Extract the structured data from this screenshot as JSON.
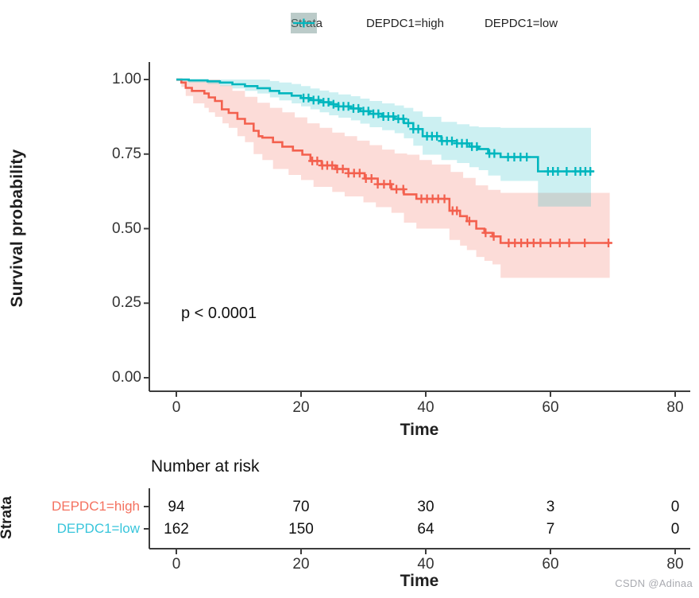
{
  "colors": {
    "high_line": "#F3604E",
    "low_line": "#00B6BE",
    "high_band": "rgba(243,96,78,0.22)",
    "low_band": "rgba(0,182,190,0.20)",
    "high_label": "#F4715F",
    "low_label": "#38C5DB",
    "axis": "#3d3d3d",
    "text": "#242424",
    "watermark": "#a9aab0"
  },
  "legend": {
    "title": "Strata",
    "items": [
      {
        "label": "DEPDC1=high",
        "color_key": "high"
      },
      {
        "label": "DEPDC1=low",
        "color_key": "low"
      }
    ]
  },
  "axes": {
    "y_label": "Survival probability",
    "x_label": "Time",
    "y_ticks": [
      "1.00",
      "0.75",
      "0.50",
      "0.25",
      "0.00"
    ],
    "x_ticks": [
      "0",
      "20",
      "40",
      "60",
      "80"
    ]
  },
  "annotation": {
    "p_value": "p < 0.0001"
  },
  "risk_table": {
    "title": "Number at risk",
    "axis_label": "Strata",
    "x_label": "Time",
    "x_ticks": [
      "0",
      "20",
      "40",
      "60",
      "80"
    ],
    "rows": [
      {
        "label": "DEPDC1=high",
        "color_key": "high",
        "values": [
          "94",
          "70",
          "30",
          "3",
          "0"
        ]
      },
      {
        "label": "DEPDC1=low",
        "color_key": "low",
        "values": [
          "162",
          "150",
          "64",
          "7",
          "0"
        ]
      }
    ]
  },
  "watermark": "CSDN @Adinaa",
  "chart_data": {
    "type": "line",
    "subtype": "kaplan-meier-step",
    "title": "",
    "xlabel": "Time",
    "ylabel": "Survival probability",
    "xlim": [
      0,
      80
    ],
    "ylim": [
      0,
      1
    ],
    "x_ticks": [
      0,
      20,
      40,
      60,
      80
    ],
    "y_ticks": [
      1.0,
      0.75,
      0.5,
      0.25,
      0.0
    ],
    "grid": false,
    "legend_position": "top",
    "p_value_text": "p < 0.0001",
    "number_at_risk": {
      "times": [
        0,
        20,
        40,
        60,
        80
      ],
      "DEPDC1=high": [
        94,
        70,
        30,
        3,
        0
      ],
      "DEPDC1=low": [
        162,
        150,
        64,
        7,
        0
      ]
    },
    "series": [
      {
        "name": "DEPDC1=high",
        "color_key": "high",
        "steps": [
          [
            0,
            1.0
          ],
          [
            0.8,
            0.99
          ],
          [
            1.5,
            0.972
          ],
          [
            2.5,
            0.962
          ],
          [
            4.5,
            0.953
          ],
          [
            5.2,
            0.94
          ],
          [
            6.2,
            0.928
          ],
          [
            7.3,
            0.9
          ],
          [
            8.4,
            0.888
          ],
          [
            9.8,
            0.868
          ],
          [
            11,
            0.852
          ],
          [
            12.4,
            0.828
          ],
          [
            13.2,
            0.81
          ],
          [
            13.8,
            0.805
          ],
          [
            15.5,
            0.79
          ],
          [
            17,
            0.775
          ],
          [
            18.7,
            0.762
          ],
          [
            20.2,
            0.748
          ],
          [
            21.5,
            0.727
          ],
          [
            23.3,
            0.712
          ],
          [
            25.5,
            0.7
          ],
          [
            27.6,
            0.686
          ],
          [
            30.2,
            0.668
          ],
          [
            32.3,
            0.649
          ],
          [
            34.5,
            0.632
          ],
          [
            36.5,
            0.615
          ],
          [
            38.5,
            0.6
          ],
          [
            43.8,
            0.56
          ],
          [
            45.5,
            0.542
          ],
          [
            46.6,
            0.525
          ],
          [
            48.1,
            0.5
          ],
          [
            49.4,
            0.486
          ],
          [
            50.7,
            0.474
          ],
          [
            52,
            0.452
          ],
          [
            69.8,
            0.452
          ]
        ],
        "censor_times": [
          21.8,
          22.6,
          23.4,
          24.2,
          25,
          25.8,
          26.7,
          27.6,
          28.5,
          29.4,
          30.4,
          31.3,
          32.3,
          33.3,
          34.3,
          35.3,
          36.4,
          39.3,
          40.2,
          41.1,
          42,
          43,
          44.3,
          45,
          47,
          49.6,
          50.9,
          53.3,
          54.3,
          55.3,
          56.3,
          57.3,
          58.4,
          60,
          61.5,
          63,
          65.5,
          69.3
        ],
        "band_upper": [
          [
            0,
            1.0
          ],
          [
            5,
            1.0
          ],
          [
            7,
            0.98
          ],
          [
            9,
            0.962
          ],
          [
            11,
            0.942
          ],
          [
            13,
            0.922
          ],
          [
            15,
            0.905
          ],
          [
            17,
            0.89
          ],
          [
            19,
            0.873
          ],
          [
            21,
            0.853
          ],
          [
            23,
            0.838
          ],
          [
            25,
            0.822
          ],
          [
            27,
            0.81
          ],
          [
            29,
            0.795
          ],
          [
            31,
            0.78
          ],
          [
            33,
            0.765
          ],
          [
            35,
            0.752
          ],
          [
            37,
            0.748
          ],
          [
            39,
            0.73
          ],
          [
            41,
            0.715
          ],
          [
            44,
            0.69
          ],
          [
            46,
            0.67
          ],
          [
            48,
            0.645
          ],
          [
            50,
            0.63
          ],
          [
            52,
            0.62
          ],
          [
            69.5,
            0.62
          ]
        ],
        "band_lower": [
          [
            0,
            0.995
          ],
          [
            0.8,
            0.975
          ],
          [
            1.5,
            0.945
          ],
          [
            2.7,
            0.92
          ],
          [
            4.5,
            0.905
          ],
          [
            5.2,
            0.89
          ],
          [
            6.2,
            0.875
          ],
          [
            7.4,
            0.853
          ],
          [
            8.4,
            0.838
          ],
          [
            9.8,
            0.81
          ],
          [
            11,
            0.79
          ],
          [
            12.4,
            0.75
          ],
          [
            13.8,
            0.73
          ],
          [
            15.5,
            0.7
          ],
          [
            18,
            0.68
          ],
          [
            20,
            0.663
          ],
          [
            22,
            0.64
          ],
          [
            25,
            0.623
          ],
          [
            27,
            0.608
          ],
          [
            30,
            0.588
          ],
          [
            32,
            0.572
          ],
          [
            34.5,
            0.553
          ],
          [
            36.5,
            0.52
          ],
          [
            38.5,
            0.5
          ],
          [
            43.8,
            0.462
          ],
          [
            45.5,
            0.443
          ],
          [
            46.6,
            0.428
          ],
          [
            48.1,
            0.405
          ],
          [
            49.4,
            0.392
          ],
          [
            50.7,
            0.38
          ],
          [
            52,
            0.335
          ],
          [
            69.5,
            0.335
          ]
        ]
      },
      {
        "name": "DEPDC1=low",
        "color_key": "low",
        "steps": [
          [
            0,
            1.0
          ],
          [
            2,
            0.997
          ],
          [
            5,
            0.994
          ],
          [
            7,
            0.99
          ],
          [
            9,
            0.984
          ],
          [
            11,
            0.978
          ],
          [
            13,
            0.971
          ],
          [
            15,
            0.962
          ],
          [
            16.5,
            0.954
          ],
          [
            18.5,
            0.946
          ],
          [
            20,
            0.938
          ],
          [
            21.5,
            0.931
          ],
          [
            23,
            0.924
          ],
          [
            24.5,
            0.917
          ],
          [
            26,
            0.91
          ],
          [
            28,
            0.903
          ],
          [
            29.5,
            0.894
          ],
          [
            31,
            0.885
          ],
          [
            33,
            0.876
          ],
          [
            35,
            0.868
          ],
          [
            36.5,
            0.854
          ],
          [
            38,
            0.834
          ],
          [
            39.5,
            0.81
          ],
          [
            42.5,
            0.794
          ],
          [
            45,
            0.786
          ],
          [
            47,
            0.775
          ],
          [
            48.5,
            0.767
          ],
          [
            50,
            0.752
          ],
          [
            52,
            0.74
          ],
          [
            58,
            0.692
          ],
          [
            67,
            0.692
          ]
        ],
        "censor_times": [
          20.4,
          21.2,
          22,
          22.8,
          23.6,
          24.4,
          25.2,
          26,
          26.8,
          27.6,
          28.4,
          29.2,
          30,
          30.8,
          31.6,
          32.4,
          33.2,
          34,
          34.8,
          35.6,
          36.4,
          37.2,
          38,
          38.8,
          40.2,
          41,
          41.8,
          42.6,
          43.4,
          44.2,
          45,
          45.8,
          46.6,
          47.4,
          48.2,
          50.2,
          51,
          53.2,
          54.2,
          55.2,
          56.2,
          59.6,
          60.4,
          61.2,
          62.6,
          64,
          64.8,
          65.6,
          66.4
        ],
        "band_upper": [
          [
            0,
            1.0
          ],
          [
            13,
            1.0
          ],
          [
            15,
            0.995
          ],
          [
            16.5,
            0.99
          ],
          [
            18.5,
            0.985
          ],
          [
            20,
            0.978
          ],
          [
            21.5,
            0.97
          ],
          [
            23,
            0.963
          ],
          [
            24.5,
            0.957
          ],
          [
            26,
            0.95
          ],
          [
            28,
            0.944
          ],
          [
            29.5,
            0.936
          ],
          [
            31,
            0.928
          ],
          [
            33,
            0.92
          ],
          [
            35,
            0.913
          ],
          [
            36.5,
            0.905
          ],
          [
            38,
            0.893
          ],
          [
            39.5,
            0.875
          ],
          [
            42.5,
            0.858
          ],
          [
            45,
            0.85
          ],
          [
            47,
            0.843
          ],
          [
            48.5,
            0.84
          ],
          [
            52,
            0.838
          ],
          [
            66.5,
            0.838
          ]
        ],
        "band_lower": [
          [
            0,
            0.995
          ],
          [
            2,
            0.99
          ],
          [
            5,
            0.985
          ],
          [
            7,
            0.978
          ],
          [
            9,
            0.97
          ],
          [
            11,
            0.962
          ],
          [
            13,
            0.953
          ],
          [
            15,
            0.94
          ],
          [
            16.5,
            0.93
          ],
          [
            18.5,
            0.92
          ],
          [
            20,
            0.91
          ],
          [
            21.5,
            0.9
          ],
          [
            23,
            0.89
          ],
          [
            24.5,
            0.88
          ],
          [
            26,
            0.872
          ],
          [
            28,
            0.863
          ],
          [
            29.5,
            0.852
          ],
          [
            31,
            0.84
          ],
          [
            33,
            0.83
          ],
          [
            35,
            0.82
          ],
          [
            36.5,
            0.803
          ],
          [
            38,
            0.778
          ],
          [
            39.5,
            0.748
          ],
          [
            42.5,
            0.73
          ],
          [
            45,
            0.72
          ],
          [
            47,
            0.706
          ],
          [
            48.5,
            0.696
          ],
          [
            50,
            0.678
          ],
          [
            52,
            0.66
          ],
          [
            58,
            0.574
          ],
          [
            66.5,
            0.574
          ]
        ]
      }
    ]
  }
}
